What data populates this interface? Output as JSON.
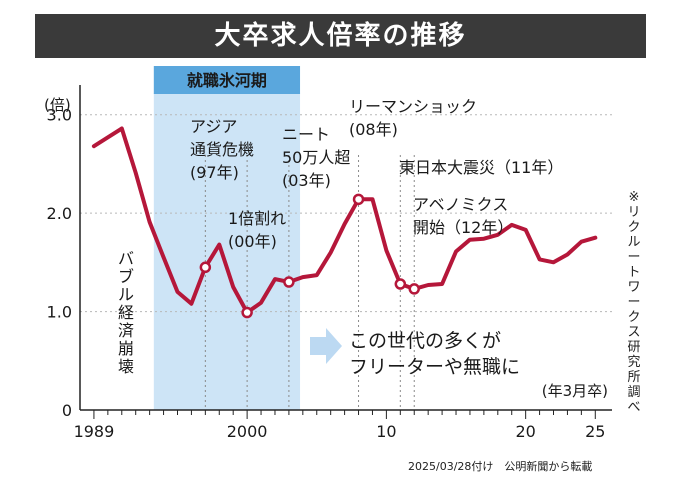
{
  "title": "大卒求人倍率の推移",
  "source": "※リクルートワークス研究所調べ",
  "credit": "2025/03/28付け　公明新聞から転載",
  "chart_data": {
    "type": "line",
    "ylabel": "(倍)",
    "xlabel": "(年3月卒)",
    "ylim": [
      0,
      3.2
    ],
    "xlim": [
      1989,
      2025
    ],
    "yticks": [
      {
        "value": 0,
        "label": "0"
      },
      {
        "value": 1.0,
        "label": "1.0"
      },
      {
        "value": 2.0,
        "label": "2.0"
      },
      {
        "value": 3.0,
        "label": "3.0"
      }
    ],
    "xticks": [
      {
        "value": 1989,
        "label": "1989"
      },
      {
        "value": 2000,
        "label": "2000"
      },
      {
        "value": 2010,
        "label": "10"
      },
      {
        "value": 2020,
        "label": "20"
      },
      {
        "value": 2025,
        "label": "25"
      }
    ],
    "series": [
      {
        "color": "#b5173a",
        "x": [
          1989,
          1990,
          1991,
          1992,
          1993,
          1994,
          1995,
          1996,
          1997,
          1998,
          1999,
          2000,
          2001,
          2002,
          2003,
          2004,
          2005,
          2006,
          2007,
          2008,
          2009,
          2010,
          2011,
          2012,
          2013,
          2014,
          2015,
          2016,
          2017,
          2018,
          2019,
          2020,
          2021,
          2022,
          2023,
          2024,
          2025
        ],
        "values": [
          2.68,
          2.77,
          2.86,
          2.41,
          1.91,
          1.55,
          1.2,
          1.08,
          1.45,
          1.68,
          1.25,
          0.99,
          1.09,
          1.33,
          1.3,
          1.35,
          1.37,
          1.6,
          1.89,
          2.14,
          2.14,
          1.62,
          1.28,
          1.23,
          1.27,
          1.28,
          1.61,
          1.73,
          1.74,
          1.78,
          1.88,
          1.83,
          1.53,
          1.5,
          1.58,
          1.71,
          1.75
        ]
      }
    ],
    "shaded_period": {
      "label": "就職氷河期",
      "from": 1993.3,
      "to": 2003.8,
      "color": "#cde4f6",
      "label_color": "#5aa7dd"
    },
    "markers": [
      {
        "year": 1997,
        "value": 1.45
      },
      {
        "year": 2000,
        "value": 0.99
      },
      {
        "year": 2003,
        "value": 1.3
      },
      {
        "year": 2008,
        "value": 2.14
      },
      {
        "year": 2011,
        "value": 1.28
      },
      {
        "year": 2012,
        "value": 1.23
      }
    ],
    "event_lines": [
      1997,
      2000,
      2003,
      2008,
      2011,
      2012
    ],
    "annotations": [
      {
        "lines": [
          "アジア",
          "通貨危機",
          "(97年)"
        ]
      },
      {
        "lines": [
          "1倍割れ",
          "(00年)"
        ]
      },
      {
        "lines": [
          "ニート",
          "50万人超",
          "(03年)"
        ]
      },
      {
        "lines": [
          "リーマンショック",
          "(08年)"
        ]
      },
      {
        "lines": [
          "東日本大震災（11年）"
        ]
      },
      {
        "lines": [
          "アベノミクス",
          "開始（12年）"
        ]
      }
    ],
    "bubble_label": "バブル経済崩壊",
    "callout": {
      "lines": [
        "この世代の多くが",
        "フリーターや無職に"
      ],
      "color": "#3a8fd6"
    }
  }
}
